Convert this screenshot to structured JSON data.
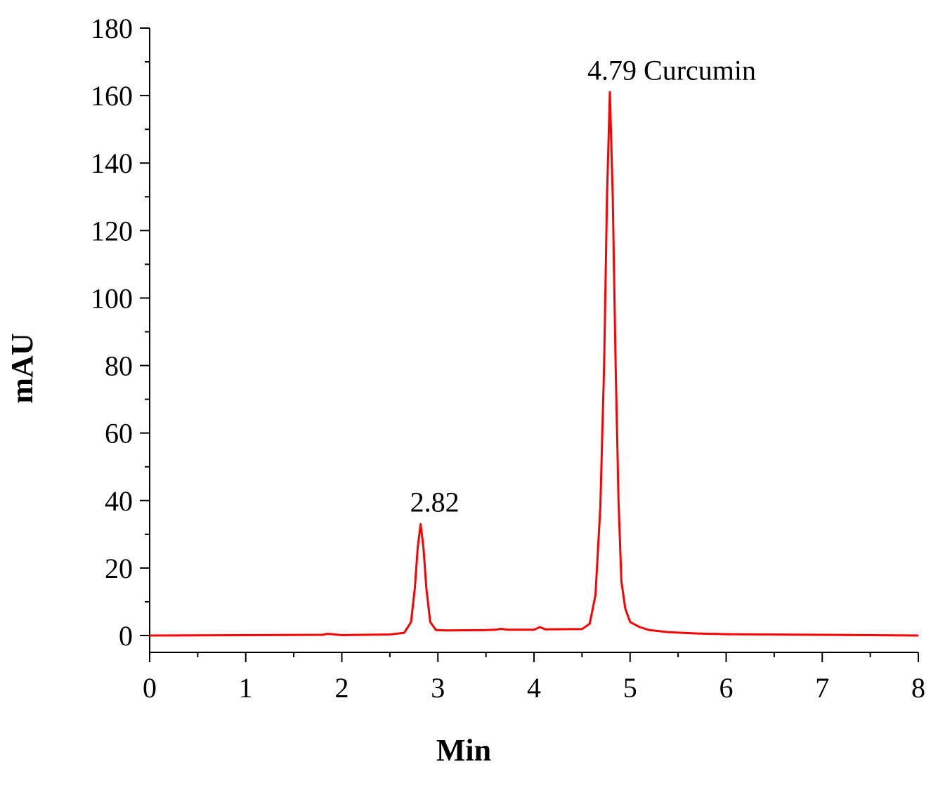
{
  "chart_data": {
    "type": "line",
    "title": "",
    "xlabel": "Min",
    "ylabel": "mAU",
    "xlim": [
      0,
      8
    ],
    "ylim": [
      -5,
      180
    ],
    "xticks": [
      0,
      1,
      2,
      3,
      4,
      5,
      6,
      7,
      8
    ],
    "yticks": [
      0,
      20,
      40,
      60,
      80,
      100,
      120,
      140,
      160,
      180
    ],
    "grid": false,
    "legend": "none",
    "series": [
      {
        "color": "#ff0000",
        "x": [
          0,
          1.8,
          1.85,
          1.9,
          2.0,
          2.5,
          2.65,
          2.72,
          2.76,
          2.79,
          2.82,
          2.85,
          2.88,
          2.92,
          2.98,
          3.1,
          3.5,
          3.6,
          3.66,
          3.72,
          4.0,
          4.06,
          4.12,
          4.5,
          4.58,
          4.64,
          4.69,
          4.73,
          4.76,
          4.79,
          4.82,
          4.85,
          4.88,
          4.91,
          4.95,
          5.0,
          5.1,
          5.2,
          5.4,
          5.7,
          6.0,
          7.0,
          8.0
        ],
        "y": [
          0,
          0.2,
          0.5,
          0.4,
          0.1,
          0.3,
          0.8,
          4,
          14,
          26,
          33,
          26,
          14,
          4,
          1.6,
          1.5,
          1.6,
          1.7,
          2.0,
          1.7,
          1.7,
          2.5,
          1.8,
          1.9,
          3.5,
          12,
          38,
          80,
          130,
          161,
          130,
          80,
          40,
          16,
          8,
          4,
          2.5,
          1.6,
          1.0,
          0.6,
          0.4,
          0.2,
          0
        ]
      }
    ],
    "annotations": [
      {
        "text": "2.82",
        "x": 2.82,
        "y": 33
      },
      {
        "text": "4.79 Curcumin",
        "x": 4.79,
        "y": 161
      }
    ]
  }
}
